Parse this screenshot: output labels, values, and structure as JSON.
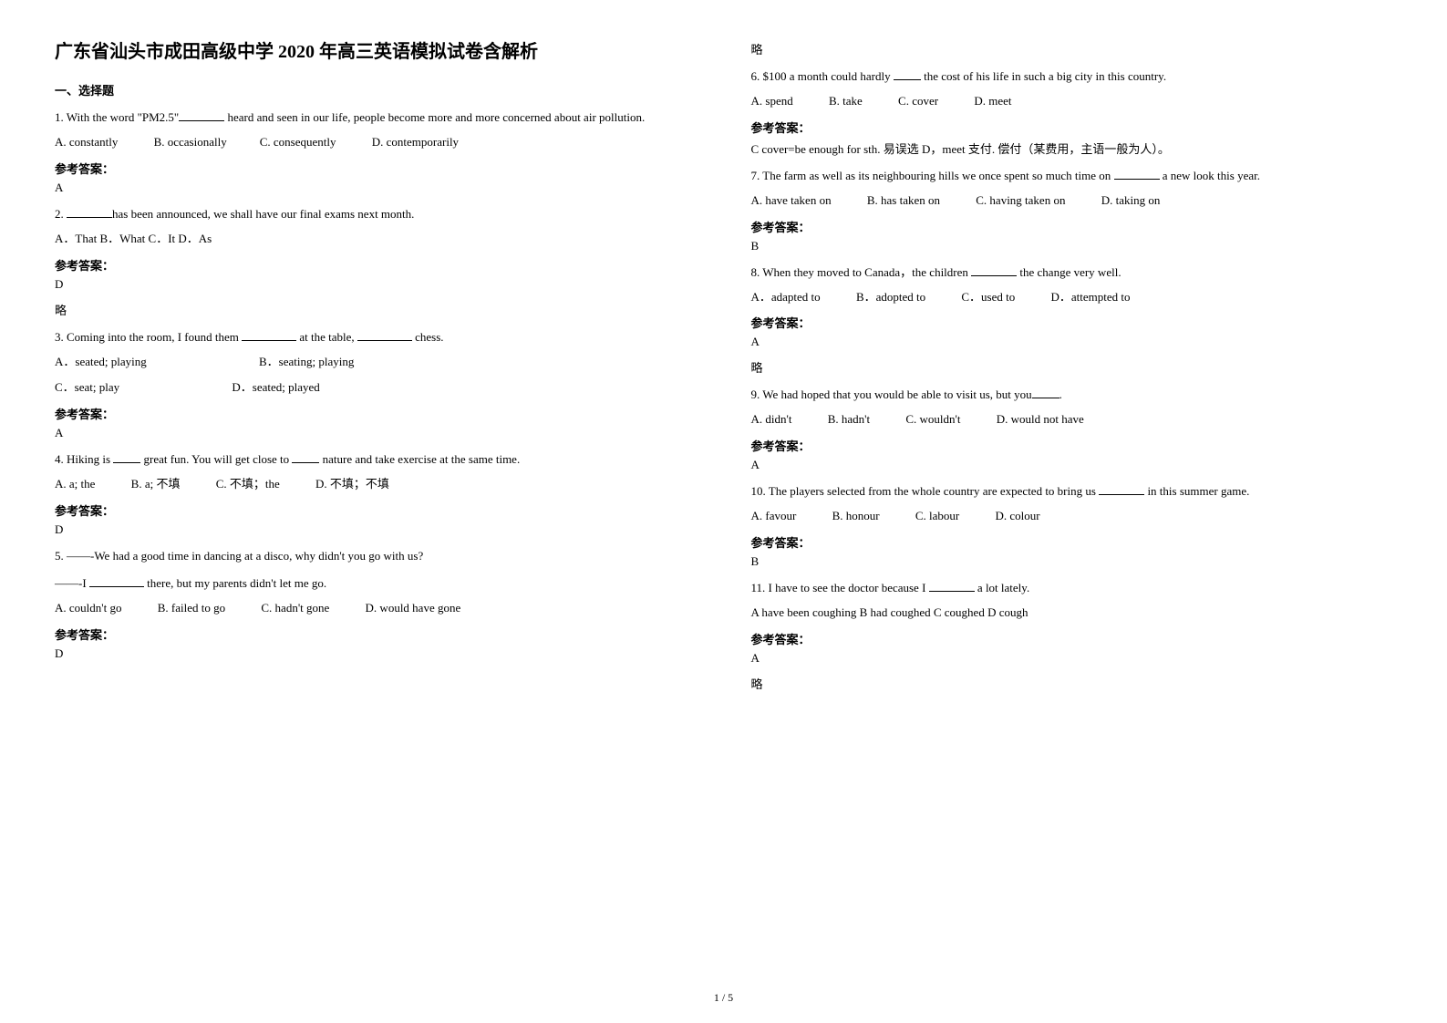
{
  "title": "广东省汕头市成田高级中学 2020 年高三英语模拟试卷含解析",
  "section1": "一、选择题",
  "footer": "1 / 5",
  "q1": {
    "text_a": "1. With the word \"PM2.5\"",
    "text_b": " heard and seen in our life, people become more and more concerned about air pollution.",
    "A": "A. constantly",
    "B": "B. occasionally",
    "C": "C. consequently",
    "D": "D. contemporarily",
    "ans_label": "参考答案：",
    "ans": "A"
  },
  "q2": {
    "text_a": "2. ",
    "text_b": "has been announced, we shall have our final exams next month.",
    "opts": "A．That   B．What   C．It   D．As",
    "ans_label": "参考答案：",
    "ans": "D",
    "note": "略"
  },
  "q3": {
    "text_a": "3. Coming into the room, I found them ",
    "text_b": " at the table, ",
    "text_c": " chess.",
    "A": "A．seated; playing",
    "B": "B．seating; playing",
    "C": "C．seat; play",
    "D": "D．seated; played",
    "ans_label": "参考答案：",
    "ans": "A"
  },
  "q4": {
    "text_a": "4. Hiking is ",
    "text_b": " great fun. You will get close to ",
    "text_c": " nature and take exercise at the same time.",
    "A": "A. a; the",
    "B": "B. a; 不填",
    "C": "C. 不填；the",
    "D": "D. 不填；不填",
    "ans_label": "参考答案：",
    "ans": "D"
  },
  "q5": {
    "line1": "5. ——-We had a good time in dancing at a disco, why didn't you go with us?",
    "line2a": "——-I ",
    "line2b": " there, but my parents didn't let me go.",
    "A": "A. couldn't go",
    "B": "B. failed to go",
    "C": "C. hadn't gone",
    "D": "D. would have gone",
    "ans_label": "参考答案：",
    "ans": "D",
    "note": "略"
  },
  "q6": {
    "text_a": "6. $100 a month could hardly ",
    "text_b": " the cost of his life in such a big city in this country.",
    "A": "A. spend",
    "B": "B. take",
    "C": "C. cover",
    "D": "D. meet",
    "ans_label": "参考答案：",
    "ans": "C cover=be enough for sth. 易误选 D，meet 支付. 偿付（某费用，主语一般为人）。"
  },
  "q7": {
    "text_a": "7. The farm as well as its neighbouring hills we once spent so much time on ",
    "text_b": " a new look this year.",
    "A": "A. have taken on",
    "B": "B. has taken on",
    "C": "C. having taken on",
    "D": "D. taking on",
    "ans_label": "参考答案：",
    "ans": "B"
  },
  "q8": {
    "text_a": "8. When they moved to Canada，the children ",
    "text_b": " the change very well.",
    "A": "A．adapted to",
    "B": "B．adopted to",
    "C": "C．used to",
    "D": "D．attempted to",
    "ans_label": "参考答案：",
    "ans": "A",
    "note": "略"
  },
  "q9": {
    "text_a": "9. We had hoped that you would be able to visit us, but you",
    "text_b": ".",
    "A": "A. didn't",
    "B": "B. hadn't",
    "C": "C. wouldn't",
    "D": "D. would not have",
    "ans_label": "参考答案：",
    "ans": "A"
  },
  "q10": {
    "text_a": "10. The players selected from the whole country are expected to bring us ",
    "text_b": " in this summer game.",
    "A": "A. favour",
    "B": "B. honour",
    "C": "C. labour",
    "D": "D. colour",
    "ans_label": "参考答案：",
    "ans": "B"
  },
  "q11": {
    "text_a": "11. I have to see the doctor because I ",
    "text_b": " a lot lately.",
    "opts": " A have been coughing   B had coughed   C coughed   D cough",
    "ans_label": "参考答案：",
    "ans": "A",
    "note": "略"
  }
}
